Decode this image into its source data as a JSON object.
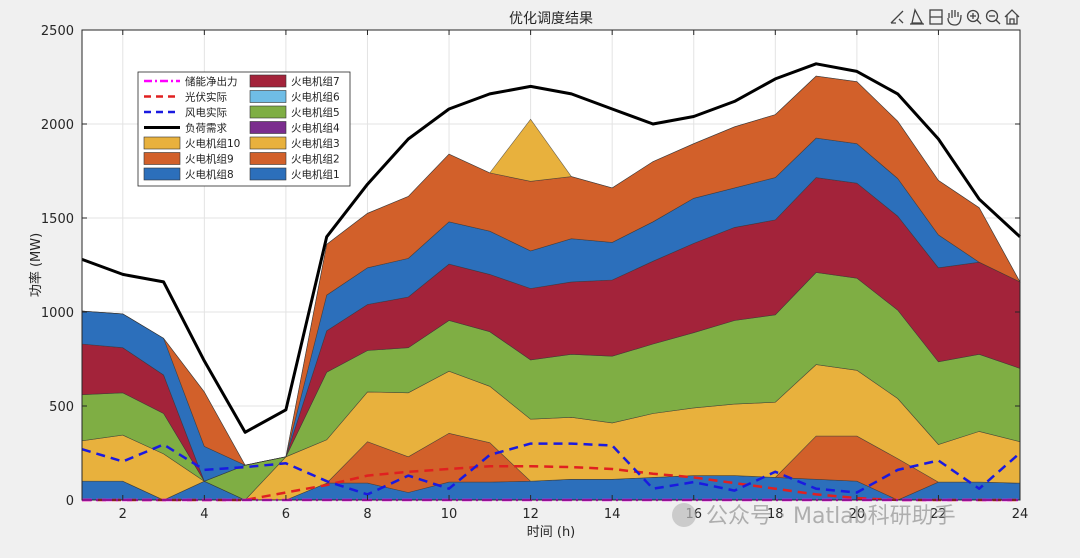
{
  "toolbar": {
    "icons": [
      "brush-icon",
      "datatip-icon",
      "rectangle-icon",
      "pan-hand-icon",
      "zoom-in-icon",
      "zoom-out-icon",
      "home-icon"
    ]
  },
  "watermark": {
    "text": "公众号 · Matlab科研助手"
  },
  "chart_data": {
    "type": "area",
    "title": "优化调度结果",
    "xlabel": "时间 (h)",
    "ylabel": "功率 (MW)",
    "xlim": [
      1,
      24
    ],
    "ylim": [
      0,
      2500
    ],
    "xticks": [
      2,
      4,
      6,
      8,
      10,
      12,
      14,
      16,
      18,
      20,
      22,
      24
    ],
    "yticks": [
      0,
      500,
      1000,
      1500,
      2000,
      2500
    ],
    "grid": true,
    "legend_position": "top-left",
    "x": [
      1,
      2,
      3,
      4,
      5,
      6,
      7,
      8,
      9,
      10,
      11,
      12,
      13,
      14,
      15,
      16,
      17,
      18,
      19,
      20,
      21,
      22,
      23,
      24
    ],
    "stack_series": [
      {
        "name": "火电机组1",
        "color": "#2c6fbb",
        "values": [
          100,
          100,
          10,
          100,
          10,
          10,
          90,
          90,
          40,
          95,
          95,
          100,
          110,
          110,
          120,
          130,
          130,
          120,
          110,
          100,
          10,
          95,
          95,
          90
        ]
      },
      {
        "name": "火电机组2",
        "color": "#d2602a",
        "values": [
          0,
          0,
          0,
          0,
          0,
          0,
          0,
          220,
          190,
          260,
          210,
          0,
          0,
          0,
          0,
          0,
          0,
          0,
          230,
          240,
          220,
          0,
          0,
          0
        ]
      },
      {
        "name": "火电机组3",
        "color": "#e8b13d",
        "values": [
          0,
          0,
          0,
          0,
          0,
          0,
          0,
          0,
          0,
          0,
          0,
          0,
          0,
          0,
          0,
          0,
          0,
          0,
          0,
          0,
          0,
          0,
          0,
          0
        ]
      },
      {
        "name": "火电机组4",
        "color": "#7b2d8e",
        "values": [
          0,
          0,
          0,
          0,
          0,
          0,
          0,
          0,
          0,
          0,
          0,
          0,
          0,
          0,
          0,
          0,
          0,
          0,
          0,
          0,
          0,
          0,
          0,
          0
        ]
      },
      {
        "name": "火电机组5",
        "color": "#7fae44",
        "values": [
          0,
          0,
          0,
          0,
          0,
          0,
          0,
          0,
          0,
          0,
          0,
          0,
          0,
          0,
          0,
          0,
          0,
          0,
          0,
          0,
          0,
          0,
          0,
          0
        ]
      },
      {
        "name": "火电机组6",
        "color": "#6fbde6",
        "values": [
          0,
          0,
          0,
          0,
          0,
          0,
          0,
          0,
          0,
          0,
          0,
          0,
          0,
          0,
          0,
          0,
          0,
          0,
          0,
          0,
          0,
          0,
          0,
          0
        ]
      },
      {
        "name": "火电机组7",
        "color": "#a3233a",
        "values": [
          0,
          0,
          0,
          0,
          0,
          0,
          0,
          0,
          0,
          0,
          0,
          0,
          0,
          0,
          0,
          0,
          0,
          0,
          0,
          0,
          0,
          0,
          0,
          0
        ]
      },
      {
        "name": "火电机组8",
        "color": "#2c6fbb",
        "values": [
          0,
          0,
          0,
          0,
          0,
          0,
          0,
          0,
          0,
          0,
          0,
          0,
          0,
          0,
          0,
          0,
          0,
          0,
          0,
          0,
          0,
          0,
          0,
          0
        ]
      },
      {
        "name": "火电机组9",
        "color": "#d2602a",
        "values": [
          0,
          0,
          0,
          0,
          0,
          0,
          0,
          0,
          0,
          0,
          0,
          0,
          0,
          0,
          0,
          0,
          0,
          0,
          0,
          0,
          0,
          0,
          0,
          0
        ]
      },
      {
        "name": "火电机组10",
        "color": "#e8b13d",
        "values": [
          215,
          245,
          240,
          0,
          0,
          0,
          230,
          265,
          340,
          330,
          300,
          330,
          330,
          300,
          340,
          360,
          380,
          400,
          380,
          350,
          320,
          200,
          270,
          220
        ]
      }
    ],
    "visible_bands": [
      {
        "color": "#7fae44",
        "values": [
          245,
          225,
          215,
          0,
          0,
          0,
          0,
          0,
          0,
          0,
          0,
          0,
          0,
          0,
          0,
          0,
          0,
          0,
          0,
          0,
          0,
          0,
          0,
          0
        ]
      }
    ],
    "bands": [
      {
        "color": "#2c6fbb",
        "values": [
          100,
          100,
          0,
          100,
          0,
          0,
          90,
          90,
          40,
          95,
          95,
          100,
          110,
          110,
          120,
          130,
          130,
          120,
          110,
          100,
          0,
          95,
          95,
          90
        ]
      },
      {
        "color": "#d2602a",
        "values": [
          0,
          0,
          0,
          0,
          0,
          0,
          0,
          220,
          190,
          260,
          210,
          0,
          0,
          0,
          0,
          0,
          0,
          0,
          230,
          240,
          220,
          0,
          0,
          0
        ]
      },
      {
        "color": "#e8b13d",
        "values": [
          215,
          245,
          245,
          0,
          0,
          230,
          230,
          265,
          340,
          330,
          300,
          330,
          330,
          300,
          340,
          360,
          380,
          400,
          380,
          350,
          320,
          200,
          270,
          220
        ]
      },
      {
        "color": "#7fae44",
        "values": [
          245,
          225,
          215,
          0,
          185,
          0,
          360,
          220,
          240,
          270,
          290,
          315,
          335,
          355,
          370,
          400,
          445,
          465,
          490,
          490,
          470,
          440,
          410,
          390
        ]
      },
      {
        "color": "#a3233a",
        "values": [
          270,
          240,
          205,
          0,
          0,
          0,
          220,
          245,
          270,
          300,
          305,
          380,
          385,
          405,
          440,
          475,
          495,
          505,
          505,
          505,
          500,
          500,
          490,
          460
        ]
      },
      {
        "color": "#2c6fbb",
        "values": [
          175,
          180,
          195,
          185,
          0,
          0,
          190,
          195,
          205,
          225,
          230,
          200,
          230,
          200,
          210,
          240,
          210,
          225,
          210,
          210,
          200,
          175,
          0,
          0
        ]
      },
      {
        "color": "#d2602a",
        "values": [
          0,
          0,
          0,
          290,
          0,
          0,
          270,
          290,
          330,
          360,
          310,
          370,
          330,
          290,
          320,
          290,
          325,
          335,
          330,
          330,
          305,
          290,
          290,
          0
        ]
      },
      {
        "color": "#e8b13d",
        "values": [
          0,
          0,
          0,
          0,
          0,
          0,
          0,
          0,
          0,
          0,
          0,
          330,
          0,
          0,
          0,
          0,
          0,
          0,
          0,
          0,
          0,
          0,
          0,
          0
        ]
      }
    ],
    "line_series": [
      {
        "name": "储能净出力",
        "color": "#ff00ff",
        "style": "dashdot",
        "values": [
          0,
          0,
          0,
          0,
          0,
          0,
          0,
          0,
          0,
          0,
          0,
          0,
          0,
          0,
          0,
          0,
          0,
          0,
          0,
          0,
          0,
          0,
          0,
          0
        ]
      },
      {
        "name": "光伏实际",
        "color": "#e02020",
        "style": "dash",
        "values": [
          0,
          0,
          0,
          0,
          0,
          40,
          80,
          130,
          150,
          165,
          180,
          180,
          175,
          165,
          140,
          120,
          90,
          60,
          30,
          10,
          0,
          0,
          0,
          0
        ]
      },
      {
        "name": "风电实际",
        "color": "#1a1ae0",
        "style": "dash",
        "values": [
          270,
          205,
          295,
          160,
          175,
          195,
          100,
          30,
          130,
          60,
          240,
          300,
          300,
          290,
          60,
          95,
          50,
          150,
          60,
          40,
          160,
          210,
          60,
          250
        ]
      },
      {
        "name": "负荷需求",
        "color": "#000000",
        "style": "solid",
        "values": [
          1280,
          1200,
          1160,
          740,
          360,
          480,
          1400,
          1680,
          1920,
          2080,
          2160,
          2200,
          2160,
          2080,
          2000,
          2040,
          2120,
          2240,
          2320,
          2280,
          2160,
          1920,
          1600,
          1400
        ]
      }
    ],
    "legend": {
      "col1": [
        {
          "label": "储能净出力",
          "kind": "line",
          "color": "#ff00ff",
          "style": "dashdot"
        },
        {
          "label": "光伏实际",
          "kind": "line",
          "color": "#e02020",
          "style": "dash"
        },
        {
          "label": "风电实际",
          "kind": "line",
          "color": "#1a1ae0",
          "style": "dash"
        },
        {
          "label": "负荷需求",
          "kind": "line",
          "color": "#000000",
          "style": "solid"
        },
        {
          "label": "火电机组10",
          "kind": "patch",
          "color": "#e8b13d"
        },
        {
          "label": "火电机组9",
          "kind": "patch",
          "color": "#d2602a"
        },
        {
          "label": "火电机组8",
          "kind": "patch",
          "color": "#2c6fbb"
        }
      ],
      "col2": [
        {
          "label": "火电机组7",
          "kind": "patch",
          "color": "#a3233a"
        },
        {
          "label": "火电机组6",
          "kind": "patch",
          "color": "#6fbde6"
        },
        {
          "label": "火电机组5",
          "kind": "patch",
          "color": "#7fae44"
        },
        {
          "label": "火电机组4",
          "kind": "patch",
          "color": "#7b2d8e"
        },
        {
          "label": "火电机组3",
          "kind": "patch",
          "color": "#e8b13d"
        },
        {
          "label": "火电机组2",
          "kind": "patch",
          "color": "#d2602a"
        },
        {
          "label": "火电机组1",
          "kind": "patch",
          "color": "#2c6fbb"
        }
      ]
    }
  }
}
